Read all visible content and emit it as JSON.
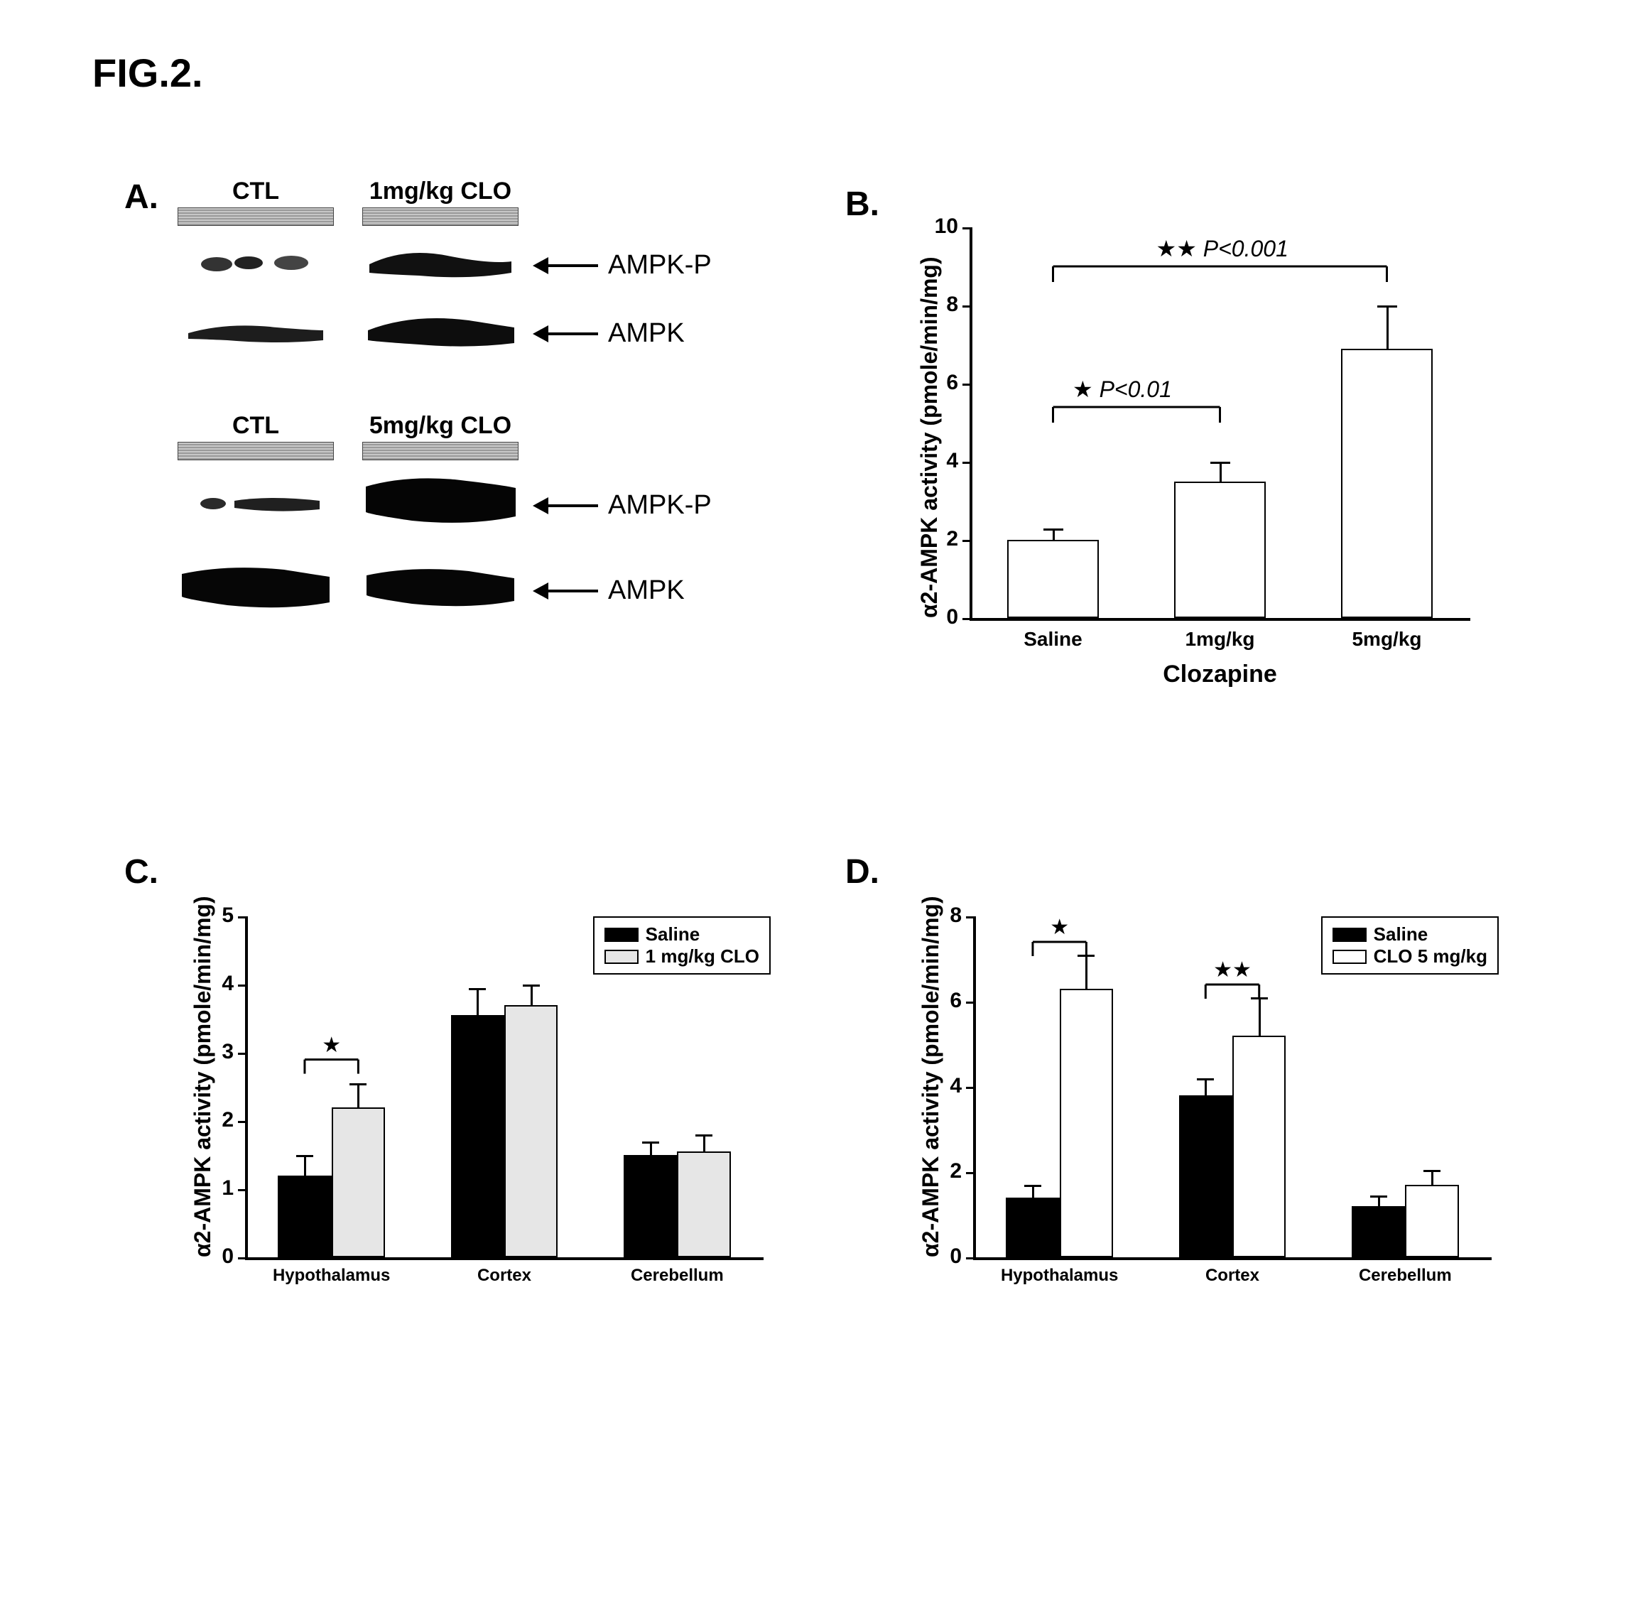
{
  "figure_title": "FIG.2.",
  "panelA": {
    "label": "A.",
    "groups": [
      {
        "col_labels": [
          "CTL",
          "1mg/kg CLO"
        ],
        "rows": [
          {
            "arrow_label": "AMPK-P",
            "ctl_intensity": 0.2,
            "clo_intensity": 0.55
          },
          {
            "arrow_label": "AMPK",
            "ctl_intensity": 0.35,
            "clo_intensity": 0.6
          }
        ]
      },
      {
        "col_labels": [
          "CTL",
          "5mg/kg CLO"
        ],
        "rows": [
          {
            "arrow_label": "AMPK-P",
            "ctl_intensity": 0.25,
            "clo_intensity": 0.95
          },
          {
            "arrow_label": "AMPK",
            "ctl_intensity": 0.9,
            "clo_intensity": 0.95
          }
        ]
      }
    ]
  },
  "panelB": {
    "label": "B.",
    "type": "bar",
    "ylabel": "α2-AMPK activity (pmole/min/mg)",
    "label_fontsize": 32,
    "ylim": [
      0,
      10
    ],
    "ytick_step": 2,
    "categories": [
      "Saline",
      "1mg/kg",
      "5mg/kg"
    ],
    "xlabel": "Clozapine",
    "values": [
      2.0,
      3.5,
      6.9
    ],
    "errors": [
      0.3,
      0.5,
      1.1
    ],
    "bar_color": "#ffffff",
    "annotations": [
      {
        "from": 0,
        "to": 1,
        "stars": "★",
        "label": "P<0.01",
        "y": 5.4
      },
      {
        "from": 0,
        "to": 2,
        "stars": "★★",
        "label": "P<0.001",
        "y": 9.0
      }
    ]
  },
  "panelC": {
    "label": "C.",
    "type": "grouped-bar",
    "ylabel": "α2-AMPK activity (pmole/min/mg)",
    "ylim": [
      0,
      5
    ],
    "ytick_step": 1,
    "categories": [
      "Hypothalamus",
      "Cortex",
      "Cerebellum"
    ],
    "series": [
      {
        "name": "Saline",
        "color": "#000000",
        "values": [
          1.2,
          3.55,
          1.5
        ],
        "errors": [
          0.3,
          0.4,
          0.2
        ]
      },
      {
        "name": "1 mg/kg CLO",
        "color": "#e6e6e6",
        "values": [
          2.2,
          3.7,
          1.55
        ],
        "errors": [
          0.35,
          0.3,
          0.25
        ]
      }
    ],
    "sig": [
      {
        "group": 0,
        "stars": "★",
        "y": 2.9
      }
    ]
  },
  "panelD": {
    "label": "D.",
    "type": "grouped-bar",
    "ylabel": "α2-AMPK activity (pmole/min/mg)",
    "ylim": [
      0,
      8
    ],
    "ytick_step": 2,
    "categories": [
      "Hypothalamus",
      "Cortex",
      "Cerebellum"
    ],
    "series": [
      {
        "name": "Saline",
        "color": "#000000",
        "values": [
          1.4,
          3.8,
          1.2
        ],
        "errors": [
          0.3,
          0.4,
          0.25
        ]
      },
      {
        "name": "CLO 5 mg/kg",
        "color": "#ffffff",
        "values": [
          6.3,
          5.2,
          1.7
        ],
        "errors": [
          0.8,
          0.9,
          0.35
        ]
      }
    ],
    "sig": [
      {
        "group": 0,
        "stars": "★",
        "y": 7.4
      },
      {
        "group": 1,
        "stars": "★★",
        "y": 6.4
      }
    ]
  },
  "colors": {
    "axis": "#000000",
    "text": "#000000",
    "background": "#ffffff"
  }
}
